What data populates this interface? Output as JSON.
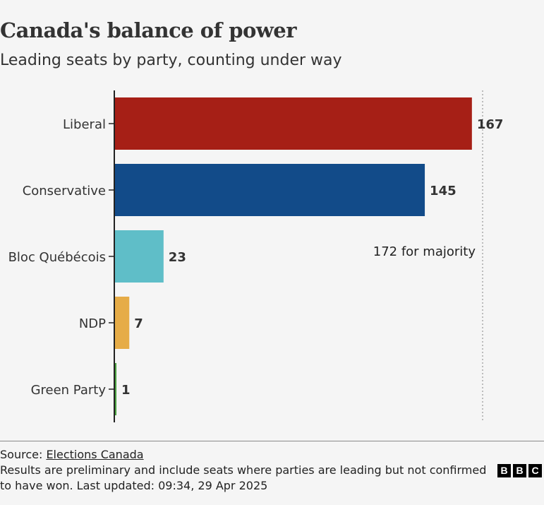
{
  "chart_data": {
    "type": "bar",
    "orientation": "horizontal",
    "title": "Canada's balance of power",
    "subtitle": "Leading seats by party, counting under way",
    "categories": [
      "Liberal",
      "Conservative",
      "Bloc Québécois",
      "NDP",
      "Green Party"
    ],
    "values": [
      167,
      145,
      23,
      7,
      1
    ],
    "data_labels": [
      "167",
      "145",
      "23",
      "7",
      "1"
    ],
    "colors": [
      "#a61f16",
      "#124b89",
      "#5fbec8",
      "#e6ac47",
      "#4a9f3f"
    ],
    "xlim": [
      0,
      172
    ],
    "reference_line": {
      "value": 172,
      "label": "172 for majority",
      "style": "dotted"
    },
    "grid": false
  },
  "footer": {
    "source_prefix": "Source: ",
    "source_link": "Elections Canada",
    "note": "Results are preliminary and include seats where parties are leading but not confirmed to have won. Last updated: 09:34, 29 Apr 2025"
  },
  "logo": {
    "letters": [
      "B",
      "B",
      "C"
    ]
  }
}
